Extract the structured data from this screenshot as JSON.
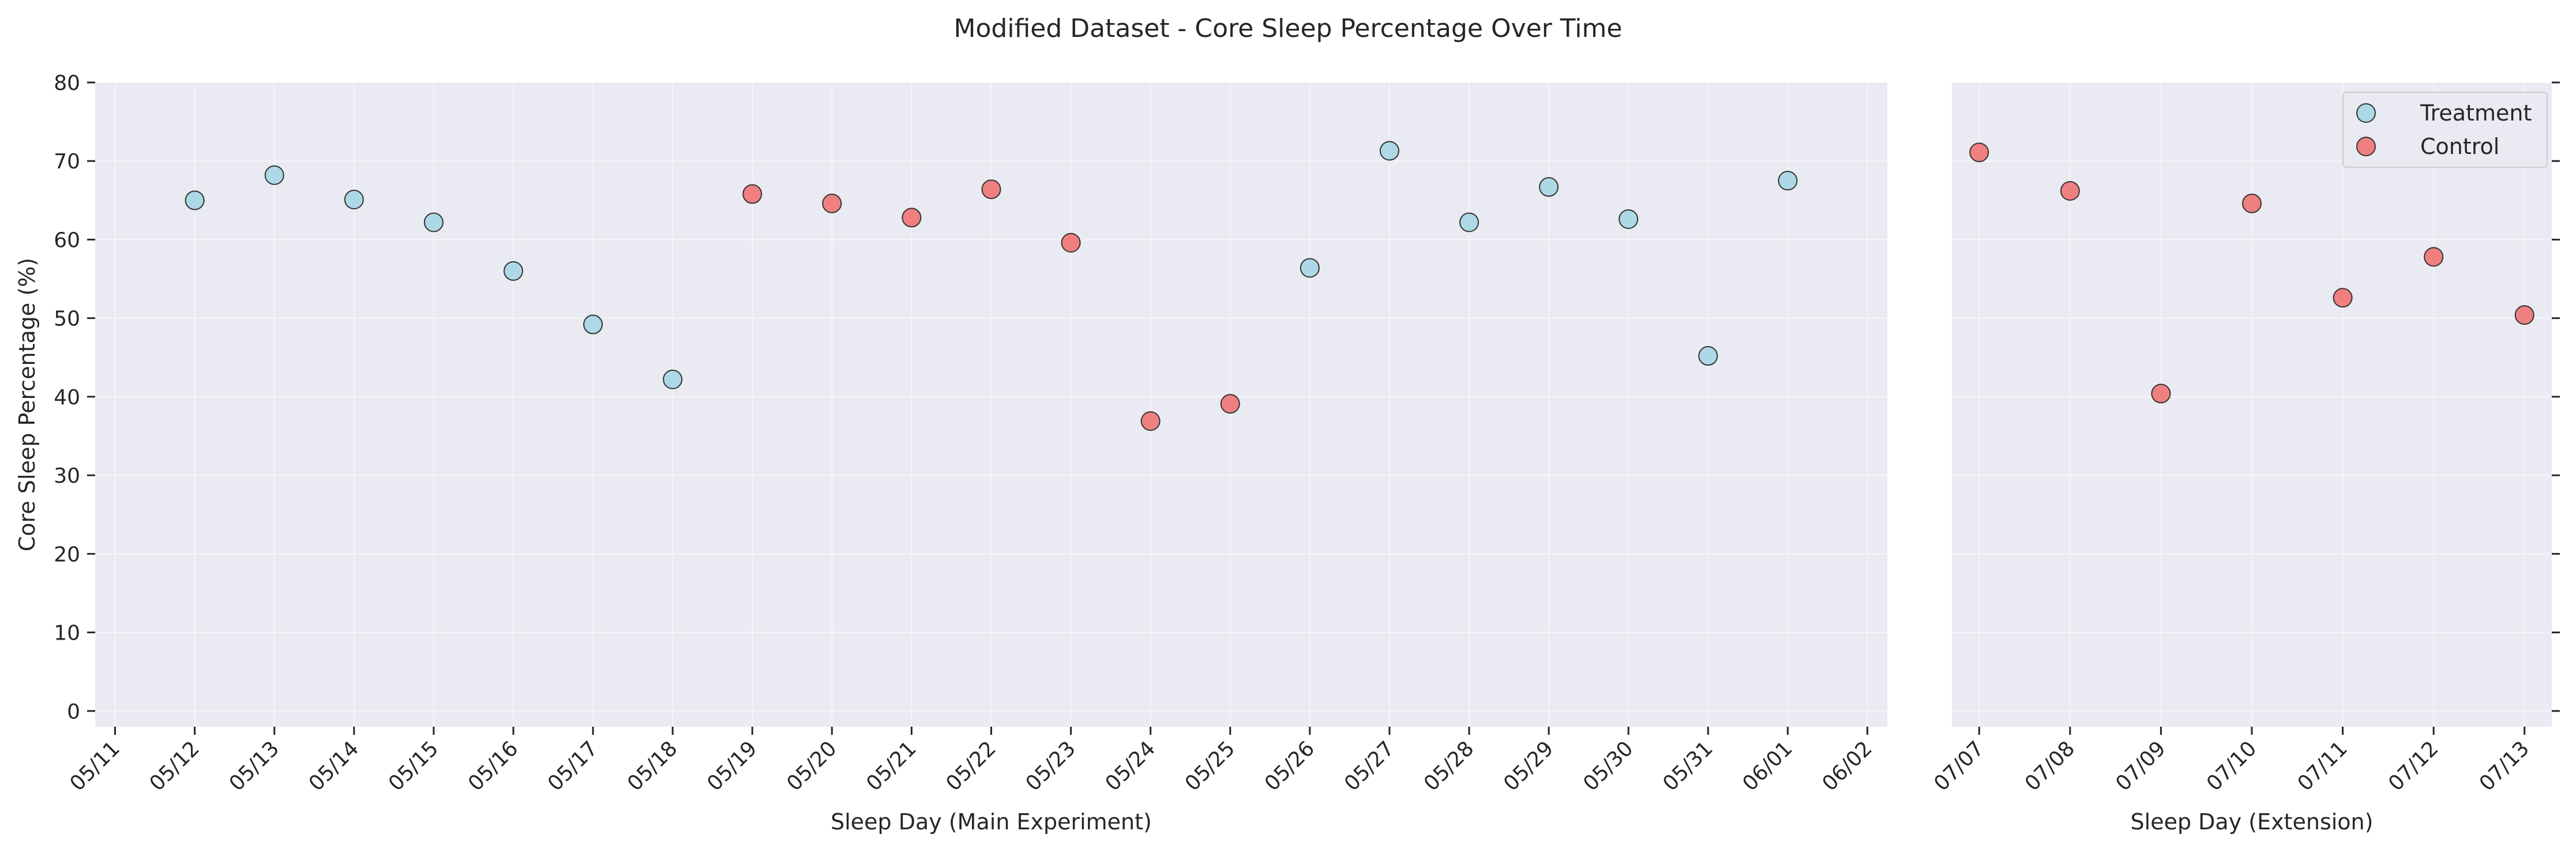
{
  "chart_data": {
    "type": "scatter",
    "title": "Modified Dataset - Core Sleep Percentage Over Time",
    "ylabel": "Core Sleep Percentage (%)",
    "ylim": [
      -2,
      80
    ],
    "yticks": [
      0,
      10,
      20,
      30,
      40,
      50,
      60,
      70,
      80
    ],
    "grid": true,
    "legend_placement": "top-right",
    "legend": [
      {
        "name": "Treatment",
        "color": "#add8e6"
      },
      {
        "name": "Control",
        "color": "#f08080"
      }
    ],
    "panels": [
      {
        "xlabel": "Sleep Day (Main Experiment)",
        "x_ticks": [
          "05/11",
          "05/12",
          "05/13",
          "05/14",
          "05/15",
          "05/16",
          "05/17",
          "05/18",
          "05/19",
          "05/20",
          "05/21",
          "05/22",
          "05/23",
          "05/24",
          "05/25",
          "05/26",
          "05/27",
          "05/28",
          "05/29",
          "05/30",
          "05/31",
          "06/01",
          "06/02"
        ],
        "xlim": [
          "05/11",
          "06/02"
        ],
        "points": [
          {
            "x": "05/12",
            "y": 65.0,
            "group": "Treatment"
          },
          {
            "x": "05/13",
            "y": 68.2,
            "group": "Treatment"
          },
          {
            "x": "05/14",
            "y": 65.1,
            "group": "Treatment"
          },
          {
            "x": "05/15",
            "y": 62.2,
            "group": "Treatment"
          },
          {
            "x": "05/16",
            "y": 56.0,
            "group": "Treatment"
          },
          {
            "x": "05/17",
            "y": 49.2,
            "group": "Treatment"
          },
          {
            "x": "05/18",
            "y": 42.2,
            "group": "Treatment"
          },
          {
            "x": "05/19",
            "y": 65.8,
            "group": "Control"
          },
          {
            "x": "05/20",
            "y": 64.6,
            "group": "Control"
          },
          {
            "x": "05/21",
            "y": 62.8,
            "group": "Control"
          },
          {
            "x": "05/22",
            "y": 66.4,
            "group": "Control"
          },
          {
            "x": "05/23",
            "y": 59.6,
            "group": "Control"
          },
          {
            "x": "05/24",
            "y": 36.9,
            "group": "Control"
          },
          {
            "x": "05/25",
            "y": 39.1,
            "group": "Control"
          },
          {
            "x": "05/26",
            "y": 56.4,
            "group": "Treatment"
          },
          {
            "x": "05/27",
            "y": 71.3,
            "group": "Treatment"
          },
          {
            "x": "05/28",
            "y": 62.2,
            "group": "Treatment"
          },
          {
            "x": "05/29",
            "y": 66.7,
            "group": "Treatment"
          },
          {
            "x": "05/30",
            "y": 62.6,
            "group": "Treatment"
          },
          {
            "x": "05/31",
            "y": 45.2,
            "group": "Treatment"
          },
          {
            "x": "06/01",
            "y": 67.5,
            "group": "Treatment"
          }
        ]
      },
      {
        "xlabel": "Sleep Day (Extension)",
        "x_ticks": [
          "07/07",
          "07/08",
          "07/09",
          "07/10",
          "07/11",
          "07/12",
          "07/13"
        ],
        "xlim": [
          "07/07",
          "07/13"
        ],
        "points": [
          {
            "x": "07/07",
            "y": 71.1,
            "group": "Control"
          },
          {
            "x": "07/08",
            "y": 66.2,
            "group": "Control"
          },
          {
            "x": "07/09",
            "y": 40.4,
            "group": "Control"
          },
          {
            "x": "07/10",
            "y": 64.6,
            "group": "Control"
          },
          {
            "x": "07/11",
            "y": 52.6,
            "group": "Control"
          },
          {
            "x": "07/12",
            "y": 57.8,
            "group": "Control"
          },
          {
            "x": "07/13",
            "y": 50.4,
            "group": "Control"
          }
        ]
      }
    ]
  }
}
